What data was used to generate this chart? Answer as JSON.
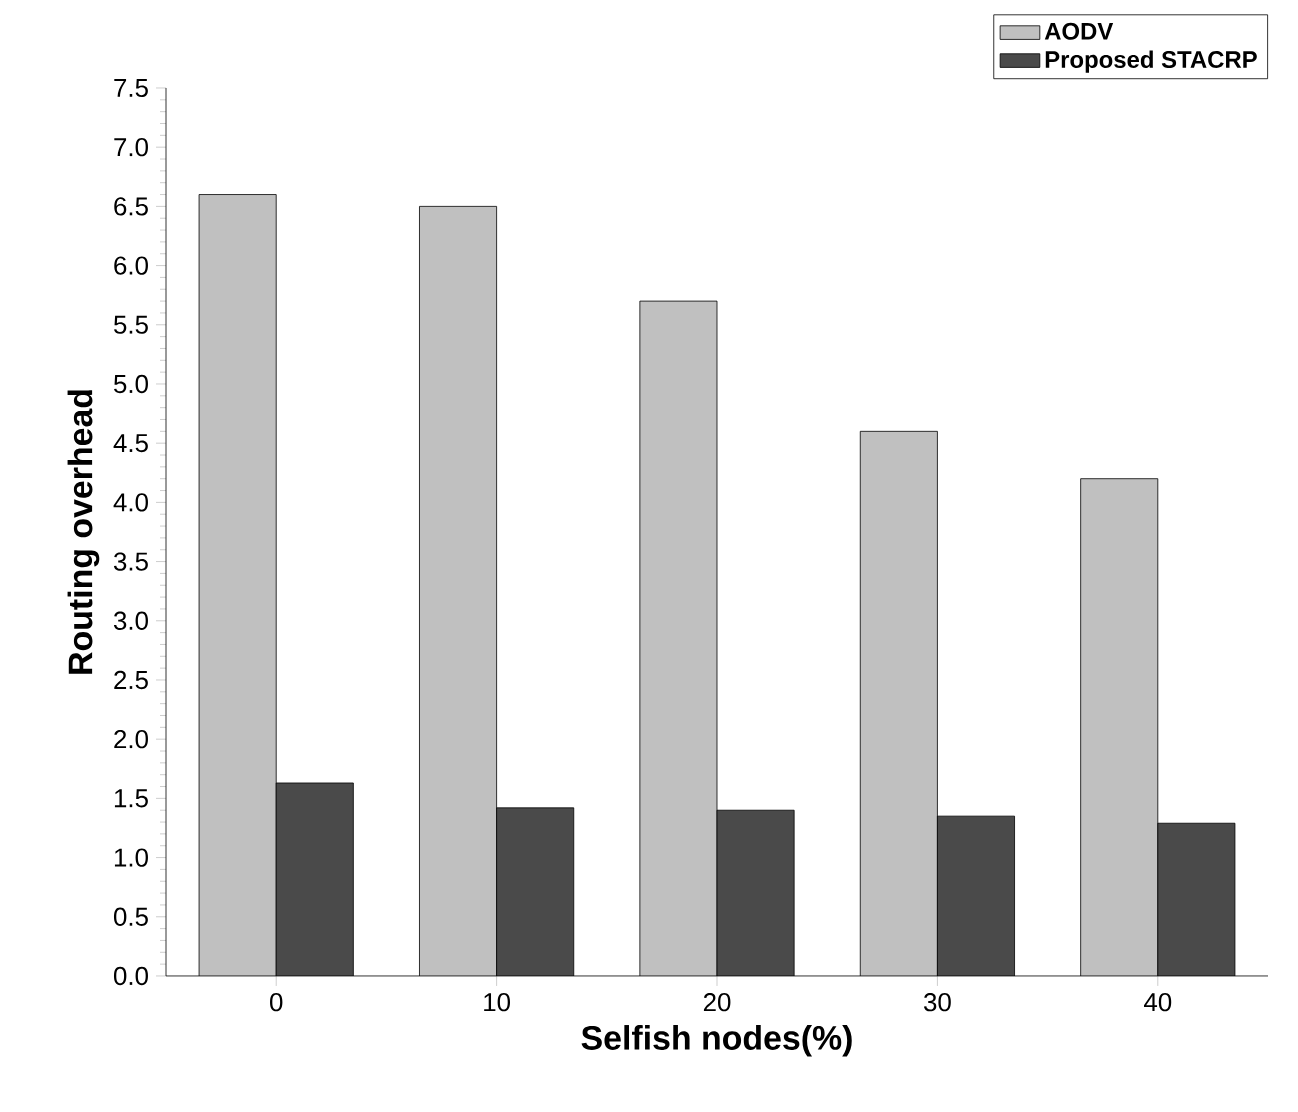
{
  "chart_data": {
    "type": "bar",
    "xlabel": "Selfish nodes(%)",
    "ylabel": "Routing overhead",
    "categories": [
      "0",
      "10",
      "20",
      "30",
      "40"
    ],
    "series": [
      {
        "name": "AODV",
        "color": "#c0c0c0",
        "values": [
          6.6,
          6.5,
          5.7,
          4.6,
          4.2
        ]
      },
      {
        "name": "Proposed STACRP",
        "color": "#4a4a4a",
        "values": [
          1.63,
          1.42,
          1.4,
          1.35,
          1.29
        ]
      }
    ],
    "ylim": [
      0,
      7.5
    ],
    "yticks": [
      {
        "value": 0,
        "label": "0.0"
      },
      0.5,
      {
        "value": 1,
        "label": "1.0"
      },
      1.5,
      {
        "value": 2,
        "label": "2.0"
      },
      2.5,
      {
        "value": 3,
        "label": "3.0"
      },
      3.5,
      {
        "value": 4,
        "label": "4.0"
      },
      4.5,
      {
        "value": 5,
        "label": "5.0"
      },
      5.5,
      {
        "value": 6,
        "label": "6.0"
      },
      6.5,
      {
        "value": 7,
        "label": "7.0"
      },
      7.5
    ],
    "legend": "top right"
  }
}
